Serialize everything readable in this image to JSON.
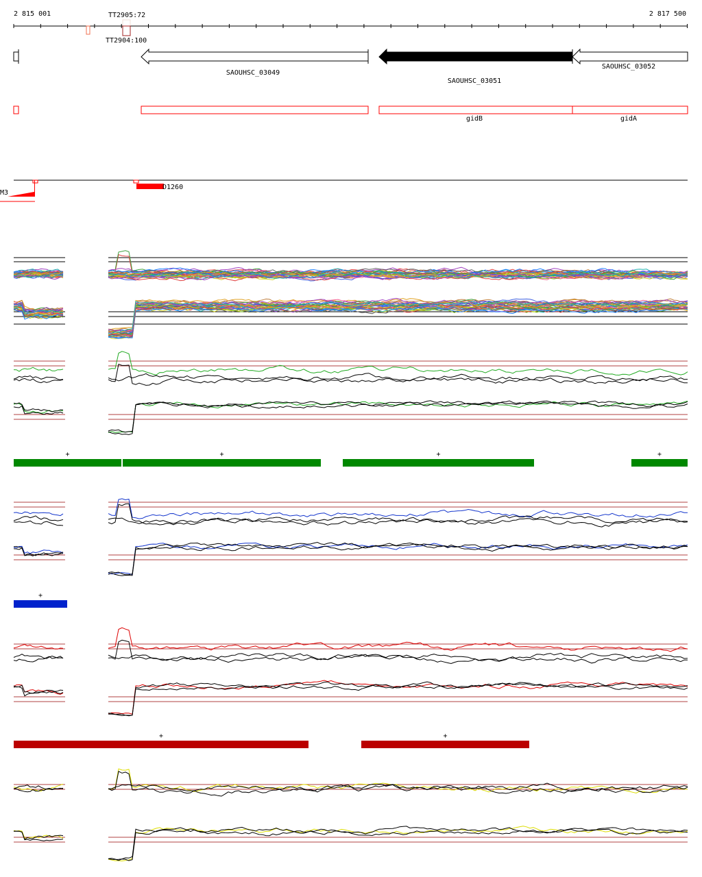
{
  "ruler": {
    "start_label": "2 815 001",
    "end_label": "2 817 500"
  },
  "terminators": [
    {
      "label": "TT2905:72",
      "color": "#f0e0d8"
    },
    {
      "label": "TT2904:100",
      "color": "#a02020"
    }
  ],
  "genes": [
    {
      "label": "SAOUHSC_03049",
      "strand": "-",
      "filled": false
    },
    {
      "label": "SAOUHSC_03051",
      "strand": "-",
      "filled": true
    },
    {
      "label": "SAOUHSC_03052",
      "strand": "-",
      "filled": false
    }
  ],
  "cds_names": [
    "gidB",
    "gidA"
  ],
  "features": [
    {
      "label": "M3"
    },
    {
      "label": "D1260"
    }
  ],
  "segment_bars": [
    {
      "color": "#008800",
      "mark": "+",
      "count": 4
    },
    {
      "color": "#0022cc",
      "mark": "+",
      "count": 1
    },
    {
      "color": "#bb0000",
      "mark": "+",
      "count": 2
    }
  ],
  "colors": {
    "reference_line": "#b04040",
    "accent_red": "#ff0000",
    "green": "#22aa22",
    "blue": "#1133cc",
    "red": "#dd0000",
    "yellow": "#dddd00"
  }
}
